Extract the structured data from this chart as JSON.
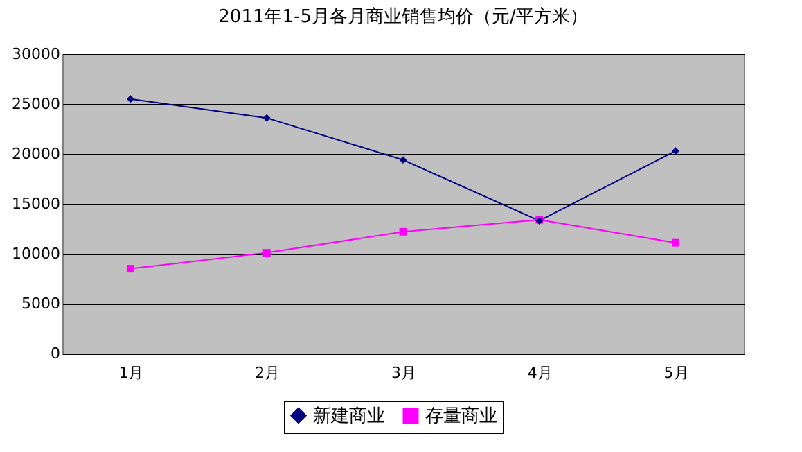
{
  "chart_data": {
    "type": "line",
    "title": "2011年1-5月各月商业销售均价（元/平方米）",
    "categories": [
      "1月",
      "2月",
      "3月",
      "4月",
      "5月"
    ],
    "series": [
      {
        "name": "新建商业",
        "color": "#000080",
        "values": [
          25500,
          23600,
          19400,
          13300,
          20300
        ],
        "marker": "diamond"
      },
      {
        "name": "存量商业",
        "color": "#ff00ff",
        "values": [
          8500,
          10100,
          12200,
          13400,
          11100
        ],
        "marker": "square"
      }
    ],
    "ylim": [
      0,
      30000
    ],
    "yticks": [
      0,
      5000,
      10000,
      15000,
      20000,
      25000,
      30000
    ],
    "grid": "y",
    "legend": "bottom"
  }
}
